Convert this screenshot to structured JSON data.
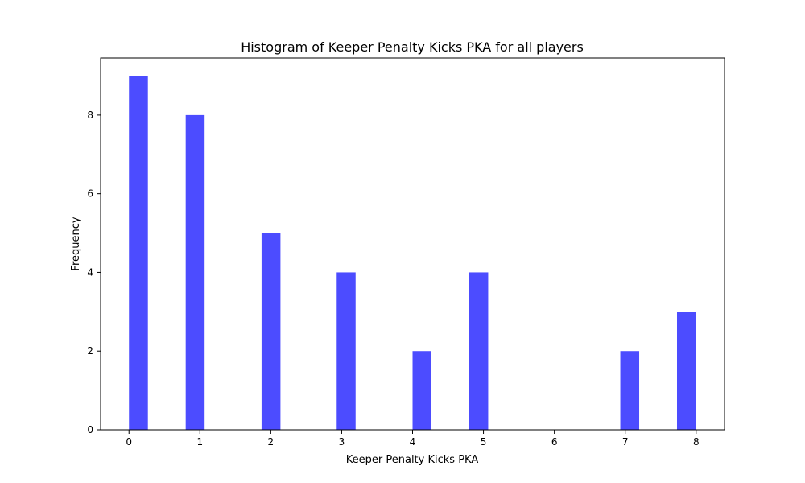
{
  "chart_data": {
    "type": "bar",
    "title": "Histogram of Keeper Penalty Kicks PKA for all players",
    "xlabel": "Keeper Penalty Kicks PKA",
    "ylabel": "Frequency",
    "xlim": [
      -0.4,
      8.4
    ],
    "ylim": [
      0,
      9.45
    ],
    "xticks": [
      0,
      1,
      2,
      3,
      4,
      5,
      6,
      7,
      8
    ],
    "yticks": [
      0,
      2,
      4,
      6,
      8
    ],
    "bin_width": 0.2667,
    "bars": [
      {
        "x_start": 0.0,
        "value": 9
      },
      {
        "x_start": 0.8,
        "value": 8
      },
      {
        "x_start": 1.87,
        "value": 5
      },
      {
        "x_start": 2.93,
        "value": 4
      },
      {
        "x_start": 4.0,
        "value": 2
      },
      {
        "x_start": 4.8,
        "value": 4
      },
      {
        "x_start": 6.93,
        "value": 2
      },
      {
        "x_start": 7.73,
        "value": 3
      }
    ],
    "bar_color": "#4c4cff",
    "grid": false
  }
}
